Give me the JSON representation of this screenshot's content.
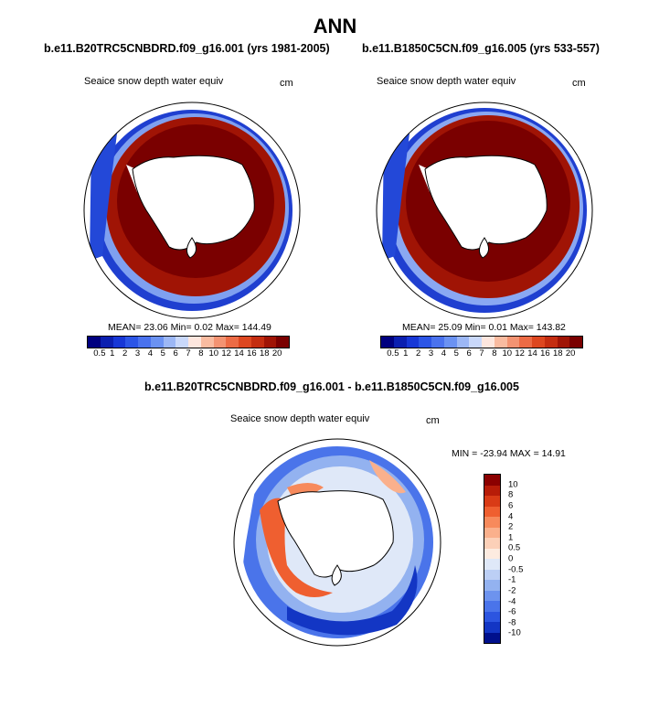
{
  "figure": {
    "title": "ANN"
  },
  "panels": [
    {
      "case_title": "b.e11.B20TRC5CNBDRD.f09_g16.001 (yrs 1981-2005)",
      "variable": "Seaice snow depth water equiv",
      "units": "cm",
      "stats": "MEAN=  23.06  Min=   0.02  Max= 144.49"
    },
    {
      "case_title": "b.e11.B1850C5CN.f09_g16.005 (yrs 533-557)",
      "variable": "Seaice snow depth water equiv",
      "units": "cm",
      "stats": "MEAN=  25.09  Min=   0.01  Max= 143.82"
    }
  ],
  "diff_panel": {
    "case_title": "b.e11.B20TRC5CNBDRD.f09_g16.001 - b.e11.B1850C5CN.f09_g16.005",
    "variable": "Seaice snow depth water equiv",
    "units": "cm",
    "stats": "MIN = -23.94 MAX =  14.91"
  },
  "colorbar_abs": {
    "labels": [
      "0.5",
      "1",
      "2",
      "3",
      "4",
      "5",
      "6",
      "7",
      "8",
      "10",
      "12",
      "14",
      "16",
      "18",
      "20"
    ],
    "colors": [
      "#00007f",
      "#0b1fb0",
      "#1737d6",
      "#2c55e6",
      "#4a72ee",
      "#6b92f2",
      "#9cb7f5",
      "#c9d8fa",
      "#fde6de",
      "#f9bba0",
      "#f39372",
      "#ec6b45",
      "#dd4720",
      "#c42d10",
      "#a01405",
      "#7a0000"
    ]
  },
  "colorbar_diff": {
    "labels": [
      "10",
      "8",
      "6",
      "4",
      "2",
      "1",
      "0.5",
      "0",
      "-0.5",
      "-1",
      "-2",
      "-4",
      "-6",
      "-8",
      "-10"
    ],
    "colors": [
      "#8b0000",
      "#b71c08",
      "#d93b16",
      "#ef5f30",
      "#f78a5c",
      "#fab08c",
      "#fcd0b8",
      "#fdebe0",
      "#dfe8f8",
      "#bccff5",
      "#93b2f0",
      "#6d93ee",
      "#4a74ea",
      "#2c55e0",
      "#1336c4",
      "#00108c"
    ]
  }
}
